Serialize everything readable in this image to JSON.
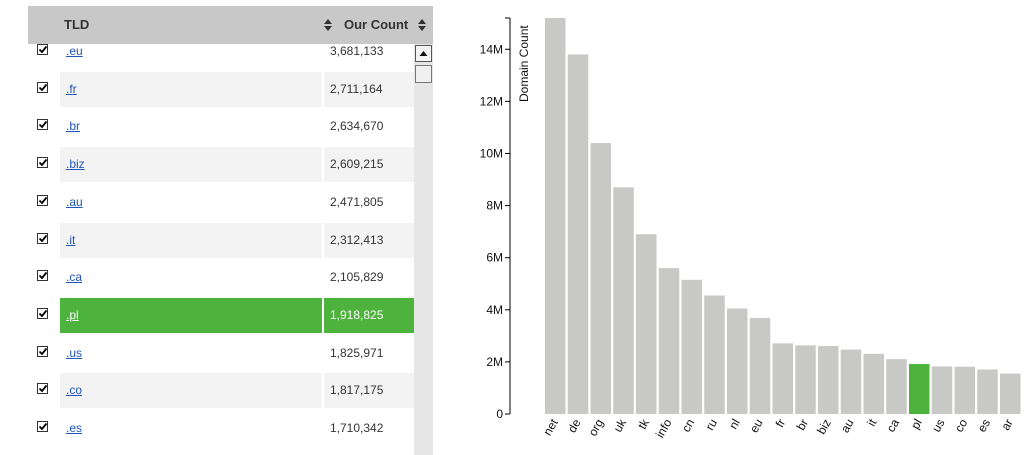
{
  "table": {
    "columns": {
      "tld": "TLD",
      "count": "Our Count"
    },
    "rows": [
      {
        "tld": ".eu",
        "count": "3,681,133",
        "checked": true,
        "selected": false
      },
      {
        "tld": ".fr",
        "count": "2,711,164",
        "checked": true,
        "selected": false
      },
      {
        "tld": ".br",
        "count": "2,634,670",
        "checked": true,
        "selected": false
      },
      {
        "tld": ".biz",
        "count": "2,609,215",
        "checked": true,
        "selected": false
      },
      {
        "tld": ".au",
        "count": "2,471,805",
        "checked": true,
        "selected": false
      },
      {
        "tld": ".it",
        "count": "2,312,413",
        "checked": true,
        "selected": false
      },
      {
        "tld": ".ca",
        "count": "2,105,829",
        "checked": true,
        "selected": false
      },
      {
        "tld": ".pl",
        "count": "1,918,825",
        "checked": true,
        "selected": true
      },
      {
        "tld": ".us",
        "count": "1,825,971",
        "checked": true,
        "selected": false
      },
      {
        "tld": ".co",
        "count": "1,817,175",
        "checked": true,
        "selected": false
      },
      {
        "tld": ".es",
        "count": "1,710,342",
        "checked": true,
        "selected": false
      }
    ]
  },
  "colors": {
    "bar": "#c8c8c6",
    "highlight": "#4db33d",
    "header_bg": "#c8c8c8",
    "link": "#2255bb"
  },
  "chart_data": {
    "type": "bar",
    "title": "",
    "xlabel": "",
    "ylabel": "Domain Count",
    "ylim": [
      0,
      15200000
    ],
    "yticks": [
      0,
      2000000,
      4000000,
      6000000,
      8000000,
      10000000,
      12000000,
      14000000
    ],
    "ytick_labels": [
      "0",
      "2M",
      "4M",
      "6M",
      "8M",
      "10M",
      "12M",
      "14M"
    ],
    "categories": [
      "net",
      "de",
      "org",
      "uk",
      "tk",
      "info",
      "cn",
      "ru",
      "nl",
      "eu",
      "fr",
      "br",
      "biz",
      "au",
      "it",
      "ca",
      "pl",
      "us",
      "co",
      "es",
      "ar"
    ],
    "values": [
      15200000,
      13800000,
      10400000,
      8700000,
      6900000,
      5600000,
      5150000,
      4550000,
      4050000,
      3681133,
      2711164,
      2634670,
      2609215,
      2471805,
      2312413,
      2105829,
      1918825,
      1825971,
      1817175,
      1710342,
      1550000
    ],
    "highlight": "pl",
    "grid": false
  }
}
